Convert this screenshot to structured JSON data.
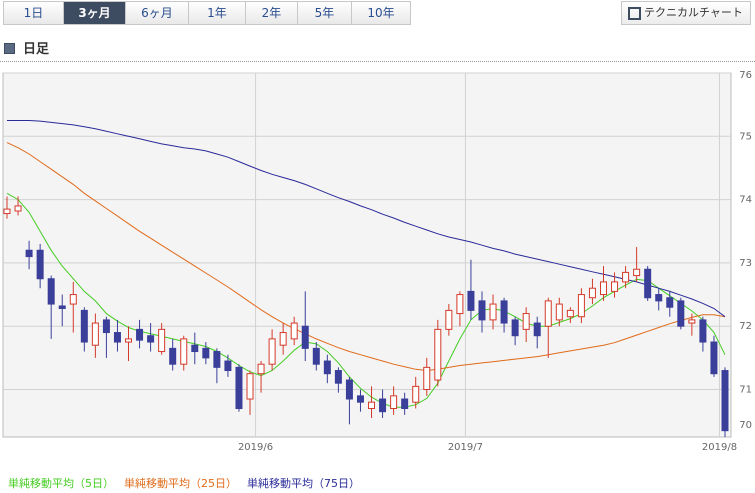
{
  "tabs": [
    "1日",
    "3ヶ月",
    "6ヶ月",
    "1年",
    "2年",
    "5年",
    "10年"
  ],
  "selected_tab": 1,
  "button": "テクニカルチャート",
  "section": "日足",
  "chart_data": {
    "type": "candlestick",
    "categories": [
      null,
      null,
      null,
      null,
      null,
      null,
      null,
      null,
      null,
      null,
      null,
      null,
      null,
      null,
      null,
      null,
      null,
      null,
      null,
      null,
      null,
      null,
      null,
      "2019/6",
      null,
      null,
      null,
      null,
      null,
      null,
      null,
      null,
      null,
      null,
      null,
      null,
      null,
      null,
      null,
      null,
      null,
      null,
      "2019/7",
      null,
      null,
      null,
      null,
      null,
      null,
      null,
      null,
      null,
      null,
      null,
      null,
      null,
      null,
      null,
      null,
      null,
      null,
      null,
      null,
      null,
      null,
      "2019/8"
    ],
    "open": [
      73.78,
      73.82,
      73.2,
      73.2,
      72.75,
      72.32,
      72.35,
      72.25,
      71.7,
      72.1,
      71.9,
      71.75,
      71.95,
      71.85,
      71.6,
      71.65,
      71.4,
      71.7,
      71.65,
      71.6,
      71.45,
      71.35,
      70.85,
      71.25,
      71.4,
      71.7,
      71.8,
      72.0,
      71.65,
      71.45,
      71.3,
      71.15,
      70.9,
      70.7,
      70.85,
      70.7,
      70.85,
      70.8,
      71.0,
      71.15,
      71.95,
      72.2,
      72.55,
      72.4,
      72.1,
      72.4,
      72.1,
      71.95,
      72.05,
      72.0,
      72.1,
      72.15,
      72.15,
      72.45,
      72.5,
      72.55,
      72.7,
      72.8,
      72.9,
      72.5,
      72.45,
      72.4,
      72.05,
      72.1,
      71.75,
      71.3
    ],
    "high": [
      74.05,
      74.05,
      73.35,
      73.3,
      72.8,
      72.5,
      72.7,
      72.3,
      72.2,
      72.15,
      72.1,
      72.0,
      72.1,
      72.05,
      72.05,
      71.8,
      71.85,
      71.9,
      71.75,
      71.65,
      71.55,
      71.4,
      71.3,
      71.45,
      71.95,
      72.05,
      72.15,
      72.55,
      71.75,
      71.55,
      71.35,
      71.2,
      71.0,
      71.05,
      71.0,
      71.05,
      70.95,
      71.2,
      71.5,
      72.1,
      72.35,
      72.55,
      73.05,
      72.55,
      72.5,
      72.45,
      72.15,
      72.3,
      72.15,
      72.45,
      72.45,
      72.3,
      72.6,
      72.75,
      72.95,
      72.85,
      72.95,
      73.25,
      72.95,
      72.6,
      72.55,
      72.45,
      72.2,
      72.15,
      71.85,
      71.35
    ],
    "low": [
      73.7,
      73.75,
      72.9,
      72.6,
      71.8,
      72.0,
      71.9,
      71.6,
      71.5,
      71.5,
      71.6,
      71.45,
      71.65,
      71.6,
      71.55,
      71.3,
      71.3,
      71.4,
      71.4,
      71.1,
      71.2,
      70.65,
      70.6,
      70.95,
      71.3,
      71.55,
      71.7,
      71.45,
      71.3,
      71.1,
      70.95,
      70.45,
      70.65,
      70.55,
      70.55,
      70.6,
      70.6,
      70.7,
      70.9,
      71.05,
      71.85,
      72.0,
      72.1,
      71.9,
      71.95,
      71.9,
      71.7,
      71.75,
      71.65,
      71.5,
      72.0,
      72.05,
      72.05,
      72.35,
      72.4,
      72.45,
      72.6,
      72.7,
      72.4,
      72.25,
      72.15,
      71.95,
      71.85,
      71.6,
      71.2,
      70.25
    ],
    "close": [
      73.85,
      73.9,
      73.1,
      72.75,
      72.35,
      72.28,
      72.5,
      71.75,
      72.05,
      71.9,
      71.75,
      71.8,
      71.78,
      71.75,
      71.95,
      71.4,
      71.8,
      71.6,
      71.5,
      71.35,
      71.3,
      70.7,
      71.25,
      71.4,
      71.8,
      71.9,
      72.05,
      71.65,
      71.4,
      71.25,
      71.1,
      70.85,
      70.8,
      70.8,
      70.65,
      70.9,
      70.7,
      71.05,
      71.35,
      71.95,
      72.25,
      72.5,
      72.25,
      72.1,
      72.35,
      72.05,
      71.85,
      72.2,
      71.85,
      72.4,
      72.35,
      72.25,
      72.5,
      72.6,
      72.7,
      72.7,
      72.85,
      72.9,
      72.45,
      72.4,
      72.3,
      72.0,
      72.1,
      71.75,
      71.25,
      70.35
    ],
    "up_color": "#d43a2a",
    "down_color": "#3a3f9a",
    "lines": [
      {
        "name": "単純移動平均（5日）",
        "color": "#44cc22",
        "values": [
          74.1,
          74.0,
          73.8,
          73.5,
          73.2,
          72.95,
          72.75,
          72.55,
          72.4,
          72.2,
          72.08,
          71.98,
          71.92,
          71.88,
          71.84,
          71.8,
          71.76,
          71.72,
          71.68,
          71.6,
          71.5,
          71.38,
          71.28,
          71.22,
          71.3,
          71.45,
          71.62,
          71.75,
          71.72,
          71.6,
          71.42,
          71.2,
          71.02,
          70.88,
          70.78,
          70.72,
          70.72,
          70.76,
          70.86,
          71.1,
          71.45,
          71.8,
          72.1,
          72.25,
          72.28,
          72.24,
          72.15,
          72.05,
          72.0,
          72.0,
          72.06,
          72.12,
          72.2,
          72.32,
          72.45,
          72.55,
          72.65,
          72.74,
          72.72,
          72.6,
          72.48,
          72.36,
          72.24,
          72.1,
          71.9,
          71.55
        ]
      },
      {
        "name": "単純移動平均（25日）",
        "color": "#e06a1a",
        "values": [
          74.9,
          74.82,
          74.72,
          74.6,
          74.48,
          74.36,
          74.24,
          74.1,
          73.98,
          73.86,
          73.74,
          73.62,
          73.5,
          73.39,
          73.28,
          73.17,
          73.06,
          72.95,
          72.84,
          72.73,
          72.62,
          72.5,
          72.38,
          72.26,
          72.15,
          72.05,
          71.96,
          71.88,
          71.8,
          71.73,
          71.66,
          71.6,
          71.55,
          71.5,
          71.45,
          71.4,
          71.36,
          71.32,
          71.3,
          71.32,
          71.35,
          71.38,
          71.4,
          71.42,
          71.44,
          71.46,
          71.48,
          71.5,
          71.52,
          71.55,
          71.58,
          71.61,
          71.64,
          71.67,
          71.7,
          71.74,
          71.8,
          71.86,
          71.92,
          71.98,
          72.04,
          72.09,
          72.14,
          72.18,
          72.18,
          72.15
        ]
      },
      {
        "name": "単純移動平均（75日）",
        "color": "#2a2a9a",
        "values": [
          75.25,
          75.25,
          75.25,
          75.24,
          75.22,
          75.2,
          75.18,
          75.15,
          75.12,
          75.08,
          75.04,
          75.0,
          74.96,
          74.92,
          74.88,
          74.85,
          74.82,
          74.8,
          74.77,
          74.72,
          74.67,
          74.6,
          74.53,
          74.46,
          74.4,
          74.35,
          74.3,
          74.24,
          74.17,
          74.1,
          74.03,
          73.97,
          73.9,
          73.84,
          73.77,
          73.71,
          73.64,
          73.58,
          73.52,
          73.46,
          73.41,
          73.37,
          73.33,
          73.28,
          73.23,
          73.19,
          73.14,
          73.1,
          73.06,
          73.02,
          72.98,
          72.94,
          72.9,
          72.86,
          72.82,
          72.78,
          72.74,
          72.7,
          72.65,
          72.6,
          72.55,
          72.49,
          72.43,
          72.36,
          72.28,
          72.15
        ]
      }
    ],
    "ylim": [
      70.25,
      76
    ],
    "yticks": [
      70,
      71,
      72,
      73,
      74,
      75,
      76
    ],
    "grid": true
  }
}
